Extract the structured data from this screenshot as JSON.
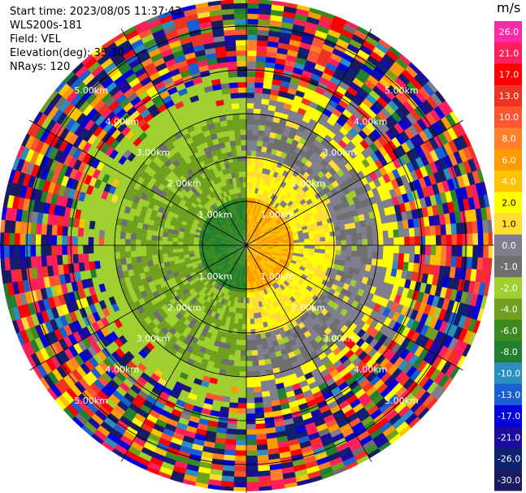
{
  "info": {
    "start_time": "Start time: 2023/08/05 11:37:43",
    "station": "WLS200s-181",
    "field": "Field: VEL",
    "elevation": "Elevation(deg): 35.30",
    "nrays": "NRays: 120"
  },
  "colorbar": {
    "unit": "m/s",
    "ticks": [
      "26.0",
      "21.0",
      "17.0",
      "13.0",
      "10.0",
      "8.0",
      "6.0",
      "4.0",
      "2.0",
      "1.0",
      "0.0",
      "-1.0",
      "-2.0",
      "-4.0",
      "-6.0",
      "-8.0",
      "-10.0",
      "-13.0",
      "-17.0",
      "-21.0",
      "-26.0",
      "-30.0"
    ],
    "colors": [
      "#ff2aa6",
      "#ff1f5a",
      "#ff0000",
      "#ee3322",
      "#ff5533",
      "#ff7f2a",
      "#ff9a00",
      "#ffc400",
      "#ffff00",
      "#ffdd33",
      "#7f7f8f",
      "#6f6f6f",
      "#a0d030",
      "#6fa020",
      "#3a8a20",
      "#208030",
      "#2a8fc0",
      "#1a5fd0",
      "#0000dd",
      "#1a0aa0",
      "#102070",
      "#1a1a60"
    ]
  },
  "chart_data": {
    "type": "heatmap",
    "projection": "polar PPI",
    "field": "VEL",
    "unit": "m/s",
    "nrays": 120,
    "elevation_deg": 35.3,
    "range_rings_km": [
      1.0,
      2.0,
      3.0,
      4.0,
      5.0
    ],
    "ring_labels": [
      "1.00km",
      "2.00km",
      "3.00km",
      "4.00km",
      "5.00km"
    ],
    "azimuth_spokes_deg": [
      0,
      30,
      60,
      90,
      120,
      150,
      180,
      210,
      240,
      270,
      300,
      330
    ],
    "max_range_km": 5.6,
    "approx_velocity_by_range": [
      {
        "range_km": [
          0.0,
          1.0
        ],
        "west_half": -6.0,
        "east_half": 6.0
      },
      {
        "range_km": [
          1.0,
          2.0
        ],
        "west_half": -2.0,
        "east_half": 2.0
      },
      {
        "range_km": [
          2.0,
          3.0
        ],
        "west_half": -2.0,
        "east_half": 0.0
      },
      {
        "range_km": [
          3.0,
          5.6
        ],
        "pattern": "noise"
      }
    ]
  }
}
